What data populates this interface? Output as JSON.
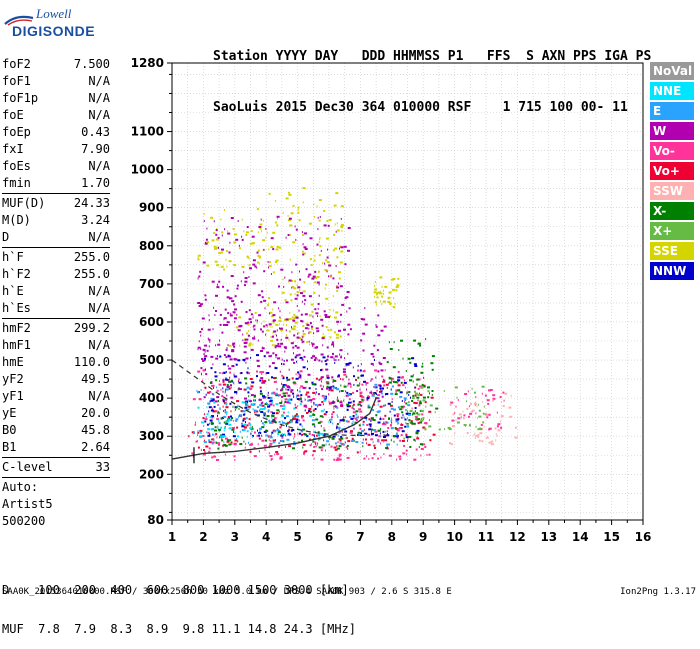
{
  "logo": {
    "line1": "Lowell",
    "line2": "DIGISONDE"
  },
  "header": {
    "line1": "Station YYYY DAY   DDD HHMMSS P1   FFS  S AXN PPS IGA PS",
    "line2": "SaoLuis 2015 Dec30 364 010000 RSF    1 715 100 00- 11"
  },
  "params": {
    "group1": [
      {
        "name": "foF2",
        "value": "7.500"
      },
      {
        "name": "foF1",
        "value": "N/A"
      },
      {
        "name": "foF1p",
        "value": "N/A"
      },
      {
        "name": "foE",
        "value": "N/A"
      },
      {
        "name": "foEp",
        "value": "0.43"
      },
      {
        "name": "fxI",
        "value": "7.90"
      },
      {
        "name": "foEs",
        "value": "N/A"
      },
      {
        "name": "fmin",
        "value": "1.70"
      }
    ],
    "group2": [
      {
        "name": "MUF(D)",
        "value": "24.33"
      },
      {
        "name": "M(D)",
        "value": "3.24"
      },
      {
        "name": "D",
        "value": "N/A"
      }
    ],
    "group3": [
      {
        "name": "h`F",
        "value": "255.0"
      },
      {
        "name": "h`F2",
        "value": "255.0"
      },
      {
        "name": "h`E",
        "value": "N/A"
      },
      {
        "name": "h`Es",
        "value": "N/A"
      }
    ],
    "group4": [
      {
        "name": "hmF2",
        "value": "299.2"
      },
      {
        "name": "hmF1",
        "value": "N/A"
      },
      {
        "name": "hmE",
        "value": "110.0"
      },
      {
        "name": "yF2",
        "value": "49.5"
      },
      {
        "name": "yF1",
        "value": "N/A"
      },
      {
        "name": "yE",
        "value": "20.0"
      },
      {
        "name": "B0",
        "value": "45.8"
      },
      {
        "name": "B1",
        "value": "2.64"
      }
    ],
    "group5": [
      {
        "name": "C-level",
        "value": "33"
      }
    ],
    "auto_lines": [
      "Auto:",
      "Artist5",
      "500200"
    ]
  },
  "legend": [
    {
      "label": "NoVal",
      "color": "#999999"
    },
    {
      "label": "NNE",
      "color": "#00e5ff"
    },
    {
      "label": "E",
      "color": "#2aa3ff"
    },
    {
      "label": "W",
      "color": "#b000b0"
    },
    {
      "label": "Vo-",
      "color": "#ff3399"
    },
    {
      "label": "Vo+",
      "color": "#ee0033"
    },
    {
      "label": "SSW",
      "color": "#ffb0b0"
    },
    {
      "label": "X-",
      "color": "#008000"
    },
    {
      "label": "X+",
      "color": "#66bb44"
    },
    {
      "label": "SSE",
      "color": "#d4d400"
    },
    {
      "label": "NNW",
      "color": "#0000cc"
    }
  ],
  "bottom": {
    "d_line": "D    100  200  400  600  800 1000 1500 3000 [km]",
    "muf_line": "MUF  7.8  7.9  8.3  8.9  9.8 11.1 14.8 24.3 [MHz]"
  },
  "footer": {
    "left": "SAA0K_2015364010000.RSF / 300fx256h 50 kHz 5.0 km / DPS-4 SAA0K 903 / 2.6 S 315.8 E",
    "right": "Ion2Png 1.3.17"
  },
  "chart_data": {
    "type": "scatter",
    "title": "",
    "xlabel": "",
    "ylabel": "",
    "xlim": [
      1,
      16
    ],
    "ylim": [
      80,
      1280
    ],
    "x_ticks": [
      1,
      2,
      3,
      4,
      5,
      6,
      7,
      8,
      9,
      10,
      11,
      12,
      13,
      14,
      15,
      16
    ],
    "y_ticks": [
      80,
      200,
      300,
      400,
      500,
      600,
      700,
      800,
      900,
      1000,
      1100,
      1280
    ],
    "grid": true,
    "series": [
      {
        "name": "SSE",
        "color": "#d4d400",
        "clusters": [
          {
            "x": [
              1.8,
              4.2
            ],
            "y": [
              740,
              900
            ]
          },
          {
            "x": [
              4.0,
              6.4
            ],
            "y": [
              560,
              960
            ]
          },
          {
            "x": [
              2.8,
              5.6
            ],
            "y": [
              540,
              640
            ]
          },
          {
            "x": [
              7.4,
              8.2
            ],
            "y": [
              640,
              720
            ]
          }
        ]
      },
      {
        "name": "Vo+",
        "color": "#ee0033",
        "clusters": [
          {
            "x": [
              1.5,
              7.6
            ],
            "y": [
              260,
              360
            ]
          },
          {
            "x": [
              7.4,
              9.3
            ],
            "y": [
              290,
              460
            ]
          },
          {
            "x": [
              2.0,
              7.0
            ],
            "y": [
              360,
              460
            ]
          }
        ]
      },
      {
        "name": "Vo-",
        "color": "#ff3399",
        "clusters": [
          {
            "x": [
              1.6,
              9.2
            ],
            "y": [
              240,
              480
            ]
          },
          {
            "x": [
              9.8,
              11.6
            ],
            "y": [
              320,
              430
            ]
          }
        ]
      },
      {
        "name": "W",
        "color": "#b000b0",
        "clusters": [
          {
            "x": [
              1.8,
              7.8
            ],
            "y": [
              380,
              640
            ]
          },
          {
            "x": [
              1.8,
              6.6
            ],
            "y": [
              500,
              880
            ]
          }
        ]
      },
      {
        "name": "NNW",
        "color": "#0000cc",
        "clusters": [
          {
            "x": [
              2.0,
              8.8
            ],
            "y": [
              300,
              520
            ]
          }
        ]
      },
      {
        "name": "X-",
        "color": "#008000",
        "clusters": [
          {
            "x": [
              2.2,
              9.0
            ],
            "y": [
              270,
              460
            ]
          },
          {
            "x": [
              7.8,
              9.4
            ],
            "y": [
              360,
              560
            ]
          }
        ]
      },
      {
        "name": "X+",
        "color": "#66bb44",
        "clusters": [
          {
            "x": [
              8.4,
              11.0
            ],
            "y": [
              320,
              440
            ]
          }
        ]
      },
      {
        "name": "E",
        "color": "#2aa3ff",
        "clusters": [
          {
            "x": [
              1.6,
              8.6
            ],
            "y": [
              280,
              440
            ]
          }
        ]
      },
      {
        "name": "NNE",
        "color": "#00e5ff",
        "clusters": [
          {
            "x": [
              1.8,
              6.0
            ],
            "y": [
              300,
              400
            ]
          }
        ]
      },
      {
        "name": "SSW",
        "color": "#ffb0b0",
        "clusters": [
          {
            "x": [
              9.8,
              12.0
            ],
            "y": [
              280,
              420
            ]
          }
        ]
      }
    ],
    "profile_curve": {
      "x": [
        1.0,
        2.0,
        3.0,
        4.0,
        5.0,
        6.0,
        6.8,
        7.3,
        7.5
      ],
      "y": [
        240,
        255,
        260,
        270,
        282,
        300,
        330,
        360,
        400
      ]
    },
    "dashed_curve": {
      "x": [
        1.0,
        1.5,
        2.0,
        2.5,
        3.0,
        3.5,
        4.0,
        4.5,
        5.0,
        5.5,
        6.0,
        6.5,
        7.0,
        7.3
      ],
      "y": [
        500,
        470,
        440,
        410,
        385,
        362,
        345,
        330,
        318,
        310,
        305,
        303,
        302,
        303
      ]
    },
    "fmin_marker": {
      "x": 1.7,
      "y": 250
    }
  }
}
